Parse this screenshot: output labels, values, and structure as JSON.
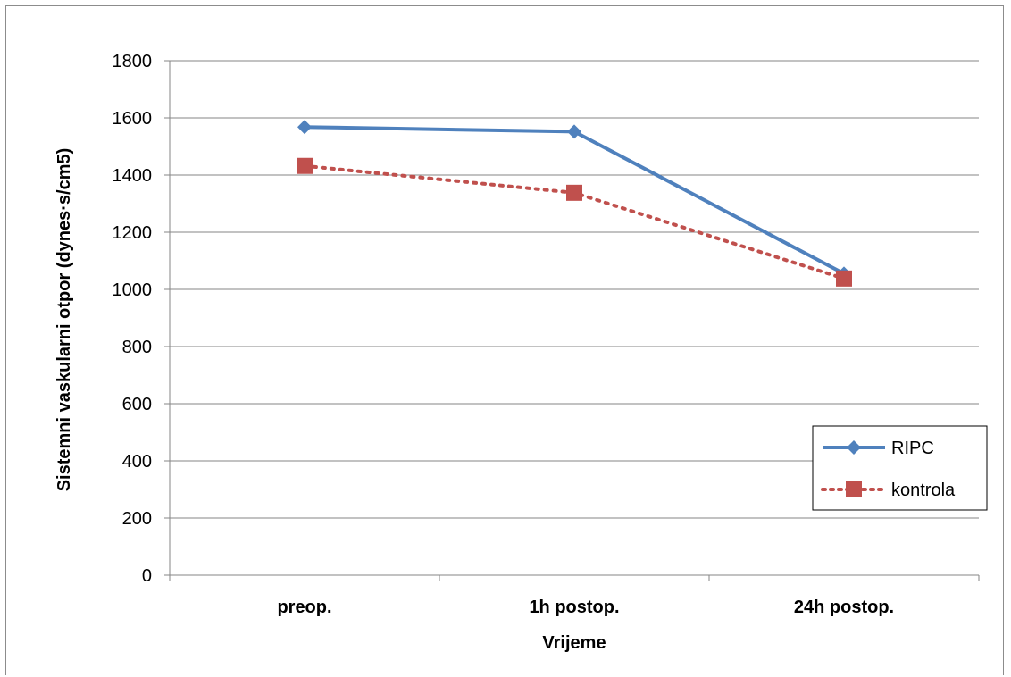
{
  "chart_data": {
    "type": "line",
    "categories": [
      "preop.",
      "1h postop.",
      "24h postop."
    ],
    "series": [
      {
        "name": "RIPC",
        "values": [
          1568,
          1552,
          1055
        ],
        "color": "#4f81bd",
        "marker": "diamond",
        "line": "solid"
      },
      {
        "name": "kontrola",
        "values": [
          1432,
          1338,
          1038
        ],
        "color": "#c0504d",
        "marker": "square",
        "line": "dotted"
      }
    ],
    "xlabel": "Vrijeme",
    "ylabel": "Sistemni vaskularni otpor (dynes·s/cm5)",
    "ylim": [
      0,
      1800
    ],
    "yticks": [
      0,
      200,
      400,
      600,
      800,
      1000,
      1200,
      1400,
      1600,
      1800
    ],
    "grid": true,
    "legend_position": "right"
  }
}
